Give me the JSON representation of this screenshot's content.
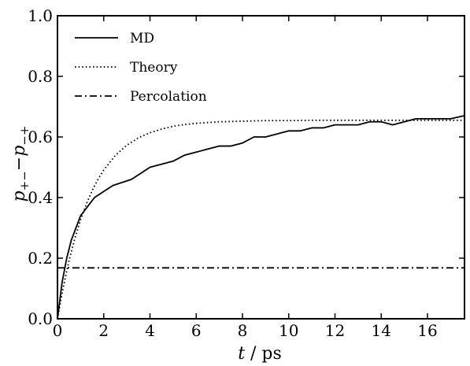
{
  "chart_data": {
    "type": "line",
    "xlabel_var": "t",
    "xlabel_unit": " / ps",
    "ylabel_p1": "p",
    "ylabel_s1": "+−",
    "ylabel_p2": "p",
    "ylabel_s2": "−+",
    "xlim": [
      0,
      17.6
    ],
    "ylim": [
      0.0,
      1.0
    ],
    "xticks": [
      0,
      2,
      4,
      6,
      8,
      10,
      12,
      14,
      16
    ],
    "yticks": [
      0.0,
      0.2,
      0.4,
      0.6,
      0.8,
      1.0
    ],
    "xtick_labels": [
      "0",
      "2",
      "4",
      "6",
      "8",
      "10",
      "12",
      "14",
      "16"
    ],
    "ytick_labels": [
      "0.0",
      "0.2",
      "0.4",
      "0.6",
      "0.8",
      "1.0"
    ],
    "legend_position": "top-left",
    "series": [
      {
        "name": "MD",
        "style": "solid",
        "x": [
          0,
          0.2,
          0.4,
          0.6,
          0.8,
          1.0,
          1.2,
          1.4,
          1.6,
          1.8,
          2.0,
          2.4,
          2.8,
          3.2,
          3.6,
          4.0,
          4.5,
          5.0,
          5.5,
          6.0,
          6.5,
          7.0,
          7.5,
          8.0,
          8.5,
          9.0,
          9.5,
          10.0,
          10.5,
          11.0,
          11.5,
          12.0,
          12.5,
          13.0,
          13.5,
          14.0,
          14.5,
          15.0,
          15.5,
          16.0,
          16.5,
          17.0,
          17.6
        ],
        "y": [
          0.0,
          0.12,
          0.2,
          0.26,
          0.3,
          0.34,
          0.36,
          0.38,
          0.4,
          0.41,
          0.42,
          0.44,
          0.45,
          0.46,
          0.48,
          0.5,
          0.51,
          0.52,
          0.54,
          0.55,
          0.56,
          0.57,
          0.57,
          0.58,
          0.6,
          0.6,
          0.61,
          0.62,
          0.62,
          0.63,
          0.63,
          0.64,
          0.64,
          0.64,
          0.65,
          0.65,
          0.64,
          0.65,
          0.66,
          0.66,
          0.66,
          0.66,
          0.67
        ]
      },
      {
        "name": "Theory",
        "style": "dotted",
        "x": [
          0,
          0.25,
          0.5,
          0.75,
          1.0,
          1.25,
          1.5,
          1.75,
          2.0,
          2.5,
          3.0,
          3.5,
          4.0,
          4.5,
          5.0,
          5.5,
          6.0,
          7.0,
          8.0,
          9.0,
          10.0,
          11.0,
          12.0,
          13.0,
          14.0,
          15.0,
          16.0,
          17.0,
          17.6
        ],
        "y": [
          0.0,
          0.104,
          0.192,
          0.265,
          0.327,
          0.379,
          0.423,
          0.46,
          0.491,
          0.539,
          0.573,
          0.597,
          0.614,
          0.626,
          0.635,
          0.641,
          0.645,
          0.65,
          0.652,
          0.654,
          0.654,
          0.655,
          0.655,
          0.655,
          0.655,
          0.655,
          0.655,
          0.655,
          0.655
        ]
      },
      {
        "name": "Percolation",
        "style": "dashdot",
        "x": [
          0,
          17.6
        ],
        "y": [
          0.168,
          0.168
        ]
      }
    ]
  }
}
